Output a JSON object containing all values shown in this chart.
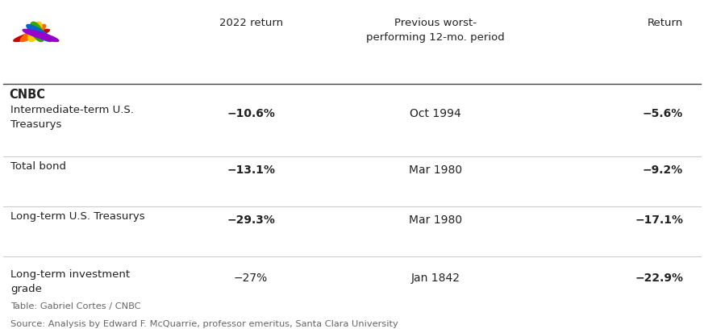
{
  "rows": [
    {
      "label": "Intermediate-term U.S.\nTreasurys",
      "return_2022": "−10.6%",
      "return_2022_bold": true,
      "prev_period": "Oct 1994",
      "prev_return": "−5.6%",
      "prev_return_bold": true
    },
    {
      "label": "Total bond",
      "return_2022": "−13.1%",
      "return_2022_bold": true,
      "prev_period": "Mar 1980",
      "prev_return": "−9.2%",
      "prev_return_bold": true
    },
    {
      "label": "Long-term U.S. Treasurys",
      "return_2022": "−29.3%",
      "return_2022_bold": true,
      "prev_period": "Mar 1980",
      "prev_return": "−17.1%",
      "prev_return_bold": true
    },
    {
      "label": "Long-term investment\ngrade",
      "return_2022": "−27%",
      "return_2022_bold": false,
      "prev_period": "Jan 1842",
      "prev_return": "−22.9%",
      "prev_return_bold": true
    }
  ],
  "header_return": "2022 return",
  "header_prev": "Previous worst-\nperforming 12-mo. period",
  "header_ret": "Return",
  "footer_line1": "Table: Gabriel Cortes / CNBC",
  "footer_line2": "Source: Analysis by Edward F. McQuarrie, professor emeritus, Santa Clara University",
  "bg_color": "#ffffff",
  "header_line_color": "#444444",
  "row_line_color": "#cccccc",
  "text_color": "#222222",
  "footer_color": "#666666",
  "feather_colors": [
    "#cc0000",
    "#ff6600",
    "#ffcc00",
    "#33aa00",
    "#0066cc",
    "#9900cc"
  ]
}
